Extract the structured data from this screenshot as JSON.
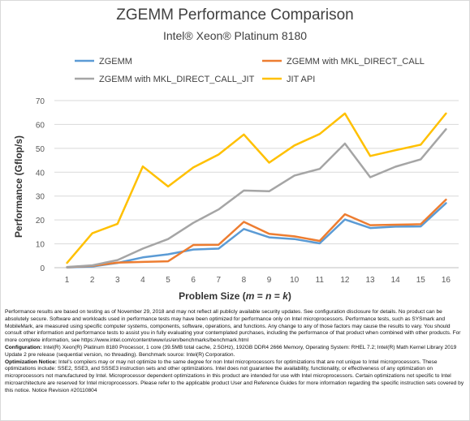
{
  "chart_data": {
    "type": "line",
    "title": "ZGEMM Performance Comparison",
    "subtitle": "Intel® Xeon® Platinum 8180",
    "xlabel_parts": [
      "Problem Size (",
      "m",
      " = ",
      "n",
      " = ",
      "k",
      ")"
    ],
    "ylabel": "Performance (Gflop/s)",
    "x": [
      1,
      2,
      3,
      4,
      5,
      6,
      7,
      8,
      9,
      10,
      11,
      12,
      13,
      14,
      15,
      16
    ],
    "ylim": [
      0,
      70
    ],
    "yticks": [
      0,
      10,
      20,
      30,
      40,
      50,
      60,
      70
    ],
    "grid": true,
    "legend_position": "top",
    "series": [
      {
        "name": "ZGEMM",
        "color": "#5b9bd5",
        "values": [
          0.1,
          0.5,
          2.0,
          4.3,
          5.6,
          7.6,
          8.0,
          16.2,
          12.7,
          12.0,
          10.2,
          20.2,
          16.6,
          17.2,
          17.3,
          27.0
        ]
      },
      {
        "name": "ZGEMM with MKL_DIRECT_CALL",
        "color": "#ed7d31",
        "values": [
          0.2,
          0.8,
          2.1,
          2.4,
          2.7,
          9.5,
          9.6,
          19.2,
          14.2,
          13.1,
          11.2,
          22.4,
          17.8,
          18.0,
          18.2,
          28.5
        ]
      },
      {
        "name": "ZGEMM with MKL_DIRECT_CALL_JIT",
        "color": "#a5a5a5",
        "values": [
          0.3,
          1.0,
          3.2,
          8.0,
          12.0,
          18.8,
          24.4,
          32.3,
          32.0,
          38.6,
          41.4,
          52.0,
          37.9,
          42.3,
          45.4,
          58.0
        ]
      },
      {
        "name": "JIT API",
        "color": "#ffc000",
        "values": [
          2.0,
          14.4,
          18.4,
          42.4,
          34.0,
          42.0,
          47.4,
          55.8,
          44.0,
          51.2,
          56.0,
          64.6,
          46.8,
          49.2,
          51.5,
          64.6
        ]
      }
    ]
  },
  "footnotes": {
    "para1": "Performance results are based on testing as of November 29, 2018 and may not reflect all publicly available security updates. See configuration disclosure for details. No product can be absolutely secure. Software and workloads used in performance tests may have been optimized for performance only on Intel microprocessors. Performance tests, such as SYSmark and MobileMark, are measured using specific computer systems, components, software, operations, and functions. Any change to any of those factors may cause the results to vary. You should consult other information and performance tests to assist you in fully evaluating your contemplated purchases, including the performance of that product when combined with other products. For more complete information, see https://www.intel.com/content/www/us/en/benchmarks/benchmark.html",
    "config_label": "Configuration:",
    "config_text": " Intel(R) Xeon(R) Platinum 8180 Processor, 1 core (39.5MB total cache, 2.5GHz), 192GB DDR4 2666 Memory, Operating System: RHEL 7.2; Intel(R) Math Kernel Library 2019 Update 2 pre release (sequential version, no threading). Benchmark source: Intel(R) Corporation.",
    "opt_label": "Optimization Notice:",
    "opt_text": " Intel's compilers may or may not optimize to the same degree for non Intel microprocessors for optimizations that are not unique to Intel microprocessors. These optimizations include: SSE2, SSE3, and SSSE3 instruction sets and other optimizations. Intel does not guarantee the availability, functionality, or effectiveness of any optimization on microprocessors not manufactured by Intel. Microprocessor dependent optimizations in this product are intended for use with Intel microprocessors. Certain optimizations not specific to Intel microarchitecture are reserved for Intel microprocessors. Please refer to the applicable product User and Reference Guides for more information regarding the specific instruction sets covered by this notice. Notice Revision #20110804"
  }
}
